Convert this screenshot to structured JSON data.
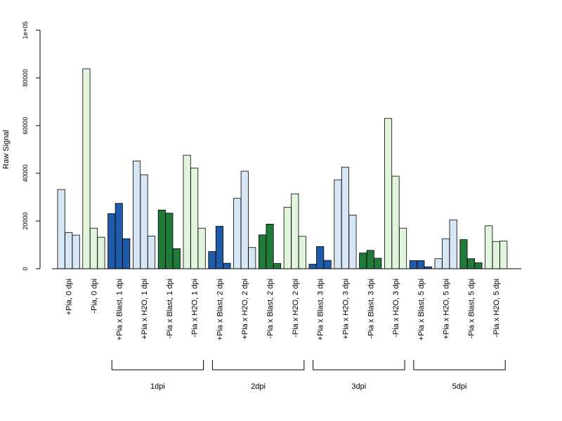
{
  "chart_data": {
    "type": "bar",
    "ylabel": "Raw Signal",
    "xlabel": "",
    "ylim": [
      0,
      100000
    ],
    "yticks": [
      {
        "value": 0,
        "label": "0"
      },
      {
        "value": 20000,
        "label": "20000"
      },
      {
        "value": 40000,
        "label": "40000"
      },
      {
        "value": 60000,
        "label": "60000"
      },
      {
        "value": 80000,
        "label": "80000"
      },
      {
        "value": 100000,
        "label": "1e+05"
      }
    ],
    "colors": {
      "+Pia x Blast": "#1f5ba8",
      "+Pia": "#d6e6f5",
      "-Pia x Blast": "#207a3a",
      "-Pia": "#e1f5dc"
    },
    "categories": [
      {
        "label": "+Pia, 0 dpi",
        "group": "+Pia",
        "values": [
          33200,
          15200,
          14100
        ]
      },
      {
        "label": "-Pia, 0 dpi",
        "group": "-Pia",
        "values": [
          83800,
          17000,
          13200
        ]
      },
      {
        "label": "+Pia x Blast, 1 dpi",
        "group": "+Pia x Blast",
        "values": [
          23100,
          27400,
          12600
        ]
      },
      {
        "label": "+Pia x H2O, 1 dpi",
        "group": "+Pia",
        "values": [
          45200,
          39400,
          13700
        ]
      },
      {
        "label": "-Pia x Blast, 1 dpi",
        "group": "-Pia x Blast",
        "values": [
          24600,
          23300,
          8400
        ]
      },
      {
        "label": "-Pia x H2O, 1 dpi",
        "group": "-Pia",
        "values": [
          47600,
          42200,
          17000
        ]
      },
      {
        "label": "+Pia x Blast, 2 dpi",
        "group": "+Pia x Blast",
        "values": [
          7200,
          17800,
          2300
        ]
      },
      {
        "label": "+Pia x H2O, 2 dpi",
        "group": "+Pia",
        "values": [
          29500,
          40900,
          8900
        ]
      },
      {
        "label": "-Pia x Blast, 2 dpi",
        "group": "-Pia x Blast",
        "values": [
          14200,
          18700,
          2200
        ]
      },
      {
        "label": "-Pia x H2O, 2 dpi",
        "group": "-Pia",
        "values": [
          25800,
          31400,
          13600
        ]
      },
      {
        "label": "+Pia x Blast, 3 dpi",
        "group": "+Pia x Blast",
        "values": [
          1900,
          9300,
          3500
        ]
      },
      {
        "label": "+Pia x H2O, 3 dpi",
        "group": "+Pia",
        "values": [
          37300,
          42600,
          22500
        ]
      },
      {
        "label": "-Pia x Blast, 3 dpi",
        "group": "-Pia x Blast",
        "values": [
          6600,
          7700,
          4400
        ]
      },
      {
        "label": "-Pia x H2O, 3 dpi",
        "group": "-Pia",
        "values": [
          63000,
          38800,
          17000
        ]
      },
      {
        "label": "+Pia x Blast, 5 dpi",
        "group": "+Pia x Blast",
        "values": [
          3400,
          3400,
          800
        ]
      },
      {
        "label": "+Pia x H2O, 5 dpi",
        "group": "+Pia",
        "values": [
          4200,
          12600,
          20500
        ]
      },
      {
        "label": "-Pia x Blast, 5 dpi",
        "group": "-Pia x Blast",
        "values": [
          12200,
          4200,
          2500
        ]
      },
      {
        "label": "-Pia x H2O, 5 dpi",
        "group": "-Pia",
        "values": [
          18000,
          11400,
          11600
        ]
      }
    ],
    "brackets": [
      {
        "label": "1dpi",
        "from": 2,
        "to": 5
      },
      {
        "label": "2dpi",
        "from": 6,
        "to": 9
      },
      {
        "label": "3dpi",
        "from": 10,
        "to": 13
      },
      {
        "label": "5dpi",
        "from": 14,
        "to": 17
      }
    ],
    "grid": false,
    "legend": "none"
  }
}
